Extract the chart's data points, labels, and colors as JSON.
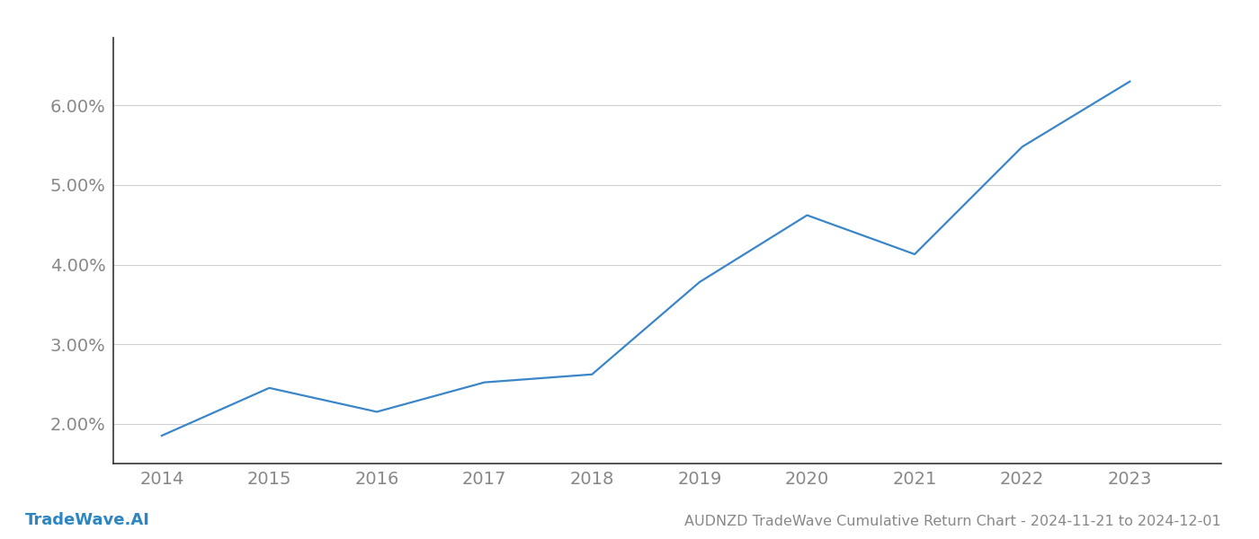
{
  "x_years": [
    2014,
    2015,
    2016,
    2017,
    2018,
    2019,
    2020,
    2021,
    2022,
    2023
  ],
  "y_values": [
    1.85,
    2.45,
    2.15,
    2.52,
    2.62,
    3.78,
    4.62,
    4.13,
    5.48,
    6.3
  ],
  "line_color": "#3a86c8",
  "line_width": 1.6,
  "background_color": "#ffffff",
  "grid_color": "#d0d0d0",
  "title": "AUDNZD TradeWave Cumulative Return Chart - 2024-11-21 to 2024-12-01",
  "watermark": "TradeWave.AI",
  "ylim_min": 1.5,
  "ylim_max": 6.85,
  "xlim_min": 2013.55,
  "xlim_max": 2023.85,
  "ytick_values": [
    2.0,
    3.0,
    4.0,
    5.0,
    6.0
  ],
  "ytick_labels": [
    "2.00%",
    "3.00%",
    "4.00%",
    "5.00%",
    "6.00%"
  ],
  "xtick_values": [
    2014,
    2015,
    2016,
    2017,
    2018,
    2019,
    2020,
    2021,
    2022,
    2023
  ],
  "tick_color": "#888888",
  "tick_fontsize": 14,
  "title_fontsize": 11.5,
  "watermark_fontsize": 13,
  "watermark_color": "#2e86c1"
}
